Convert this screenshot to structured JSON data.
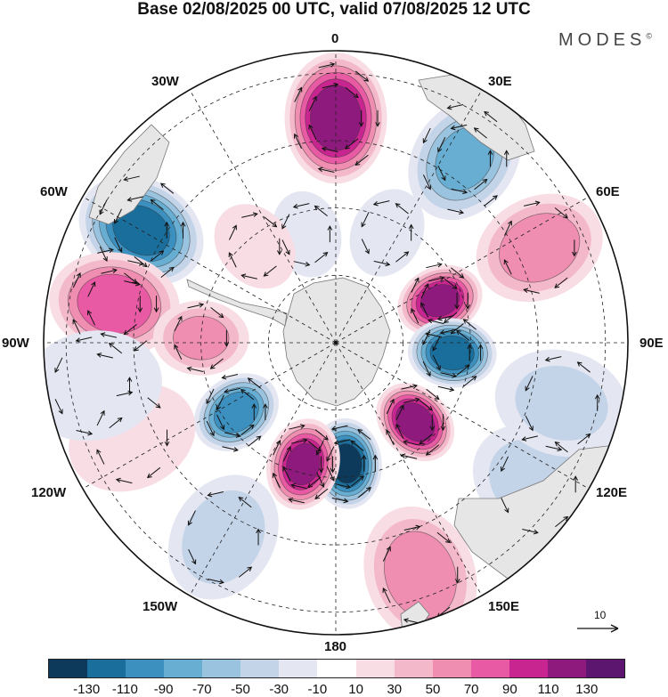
{
  "title": "Base 02/08/2025 00 UTC, valid 07/08/2025 12 UTC",
  "brand": {
    "name": "MODES",
    "mark": "©"
  },
  "longitude_labels": {
    "lon_0": "0",
    "lon_30e": "30E",
    "lon_60e": "60E",
    "lon_90e": "90E",
    "lon_120e": "120E",
    "lon_150e": "150E",
    "lon_180": "180",
    "lon_150w": "150W",
    "lon_120w": "120W",
    "lon_90w": "90W",
    "lon_60w": "60W",
    "lon_30w": "30W"
  },
  "reference_vector": {
    "label": "10"
  },
  "colorbar": {
    "colors": [
      "#0d3a5a",
      "#1a6e9c",
      "#3c90c0",
      "#68aed2",
      "#99c3de",
      "#c3d3e8",
      "#e4e6f2",
      "#ffffff",
      "#f8dde4",
      "#f3b8ca",
      "#f08eb2",
      "#e85aa3",
      "#c82590",
      "#8e1a7e",
      "#5c1670"
    ],
    "ticks": [
      "-130",
      "-110",
      "-90",
      "-70",
      "-50",
      "-30",
      "-10",
      "10",
      "30",
      "50",
      "70",
      "90",
      "110",
      "130"
    ]
  },
  "anomaly_centers": [
    {
      "lon": 0,
      "colat": 50,
      "value": 120
    },
    {
      "lon": 35,
      "colat": 50,
      "value": -70
    },
    {
      "lon": 65,
      "colat": 50,
      "value": 60
    },
    {
      "lon": 68,
      "colat": 25,
      "value": 110
    },
    {
      "lon": 95,
      "colat": 26,
      "value": -120
    },
    {
      "lon": 135,
      "colat": 25,
      "value": 120
    },
    {
      "lon": 175,
      "colat": 27,
      "value": -130
    },
    {
      "lon": -165,
      "colat": 28,
      "value": 110
    },
    {
      "lon": -125,
      "colat": 27,
      "value": -100
    },
    {
      "lon": -60,
      "colat": 50,
      "value": -110
    },
    {
      "lon": -80,
      "colat": 50,
      "value": 80
    },
    {
      "lon": -88,
      "colat": 30,
      "value": 50
    },
    {
      "lon": 160,
      "colat": 55,
      "value": 60
    },
    {
      "lon": 125,
      "colat": 55,
      "value": -40
    },
    {
      "lon": -150,
      "colat": 50,
      "value": -40
    },
    {
      "lon": -115,
      "colat": 50,
      "value": 25
    },
    {
      "lon": -100,
      "colat": 55,
      "value": -20
    },
    {
      "lon": -15,
      "colat": 25,
      "value": -20
    },
    {
      "lon": 25,
      "colat": 27,
      "value": -25
    },
    {
      "lon": -40,
      "colat": 28,
      "value": 20
    },
    {
      "lon": 105,
      "colat": 52,
      "value": -30
    }
  ]
}
